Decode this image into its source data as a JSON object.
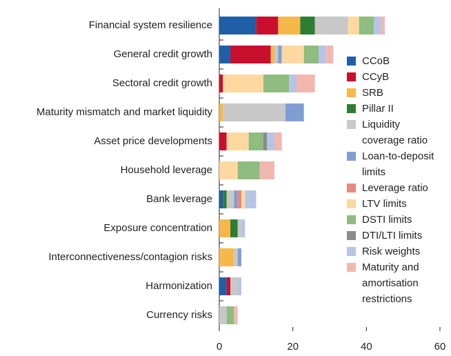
{
  "chart_data": {
    "type": "stacked-barh",
    "categories": [
      "Financial system resilience",
      "General credit growth",
      "Sectoral credit growth",
      "Maturity mismatch and market liquidity",
      "Asset price developments",
      "Household leverage",
      "Bank leverage",
      "Exposure concentration",
      "Interconnectiveness/contagion risks",
      "Harmonization",
      "Currency risks"
    ],
    "series": [
      {
        "name": "CCoB",
        "color": "#1f5fa8",
        "values": [
          10,
          3,
          0,
          0,
          0,
          0,
          1,
          0,
          0,
          2,
          0
        ]
      },
      {
        "name": "CCyB",
        "color": "#c8102e",
        "values": [
          6,
          11,
          1,
          0,
          2,
          0,
          0,
          0,
          0,
          1,
          0
        ]
      },
      {
        "name": "SRB",
        "color": "#f7b84b",
        "values": [
          6,
          1,
          0,
          1,
          0,
          0,
          0,
          3,
          4,
          0,
          0
        ]
      },
      {
        "name": "Pillar II",
        "color": "#2e7d32",
        "values": [
          4,
          0,
          0,
          0,
          0,
          0,
          1,
          2,
          0,
          0,
          0
        ]
      },
      {
        "name": "Liquidity coverage ratio",
        "color": "#c8c8c8",
        "values": [
          9,
          1,
          0,
          17,
          0,
          0,
          2,
          1,
          1,
          2,
          2
        ]
      },
      {
        "name": "Loan-to-deposit limits",
        "color": "#7f9fd4",
        "values": [
          0,
          1,
          0,
          5,
          0,
          0,
          1,
          0,
          1,
          0,
          0
        ]
      },
      {
        "name": "Leverage ratio",
        "color": "#e88a80",
        "values": [
          0,
          0,
          0,
          0,
          0,
          0,
          1,
          0,
          0,
          0,
          0
        ]
      },
      {
        "name": "LTV limits",
        "color": "#fdd9a0",
        "values": [
          3,
          6,
          11,
          0,
          6,
          5,
          1,
          0,
          0,
          0,
          0
        ]
      },
      {
        "name": "DSTI limits",
        "color": "#8fbc7f",
        "values": [
          4,
          4,
          7,
          0,
          4,
          6,
          0,
          0,
          0,
          0,
          2
        ]
      },
      {
        "name": "DTI/LTI limits",
        "color": "#8c8c8c",
        "values": [
          0,
          0,
          0,
          0,
          1,
          0,
          0,
          0,
          0,
          0,
          0
        ]
      },
      {
        "name": "Risk weights",
        "color": "#b8c4e6",
        "values": [
          2,
          2,
          2,
          0,
          2,
          0,
          3,
          1,
          0,
          1,
          0
        ]
      },
      {
        "name": "Maturity and amortisation restrictions",
        "color": "#f2b8b0",
        "values": [
          1,
          2,
          5,
          0,
          2,
          4,
          0,
          0,
          0,
          0,
          1
        ]
      }
    ],
    "xlim": [
      0,
      60
    ],
    "xticks": [
      0,
      20,
      40,
      60
    ]
  }
}
